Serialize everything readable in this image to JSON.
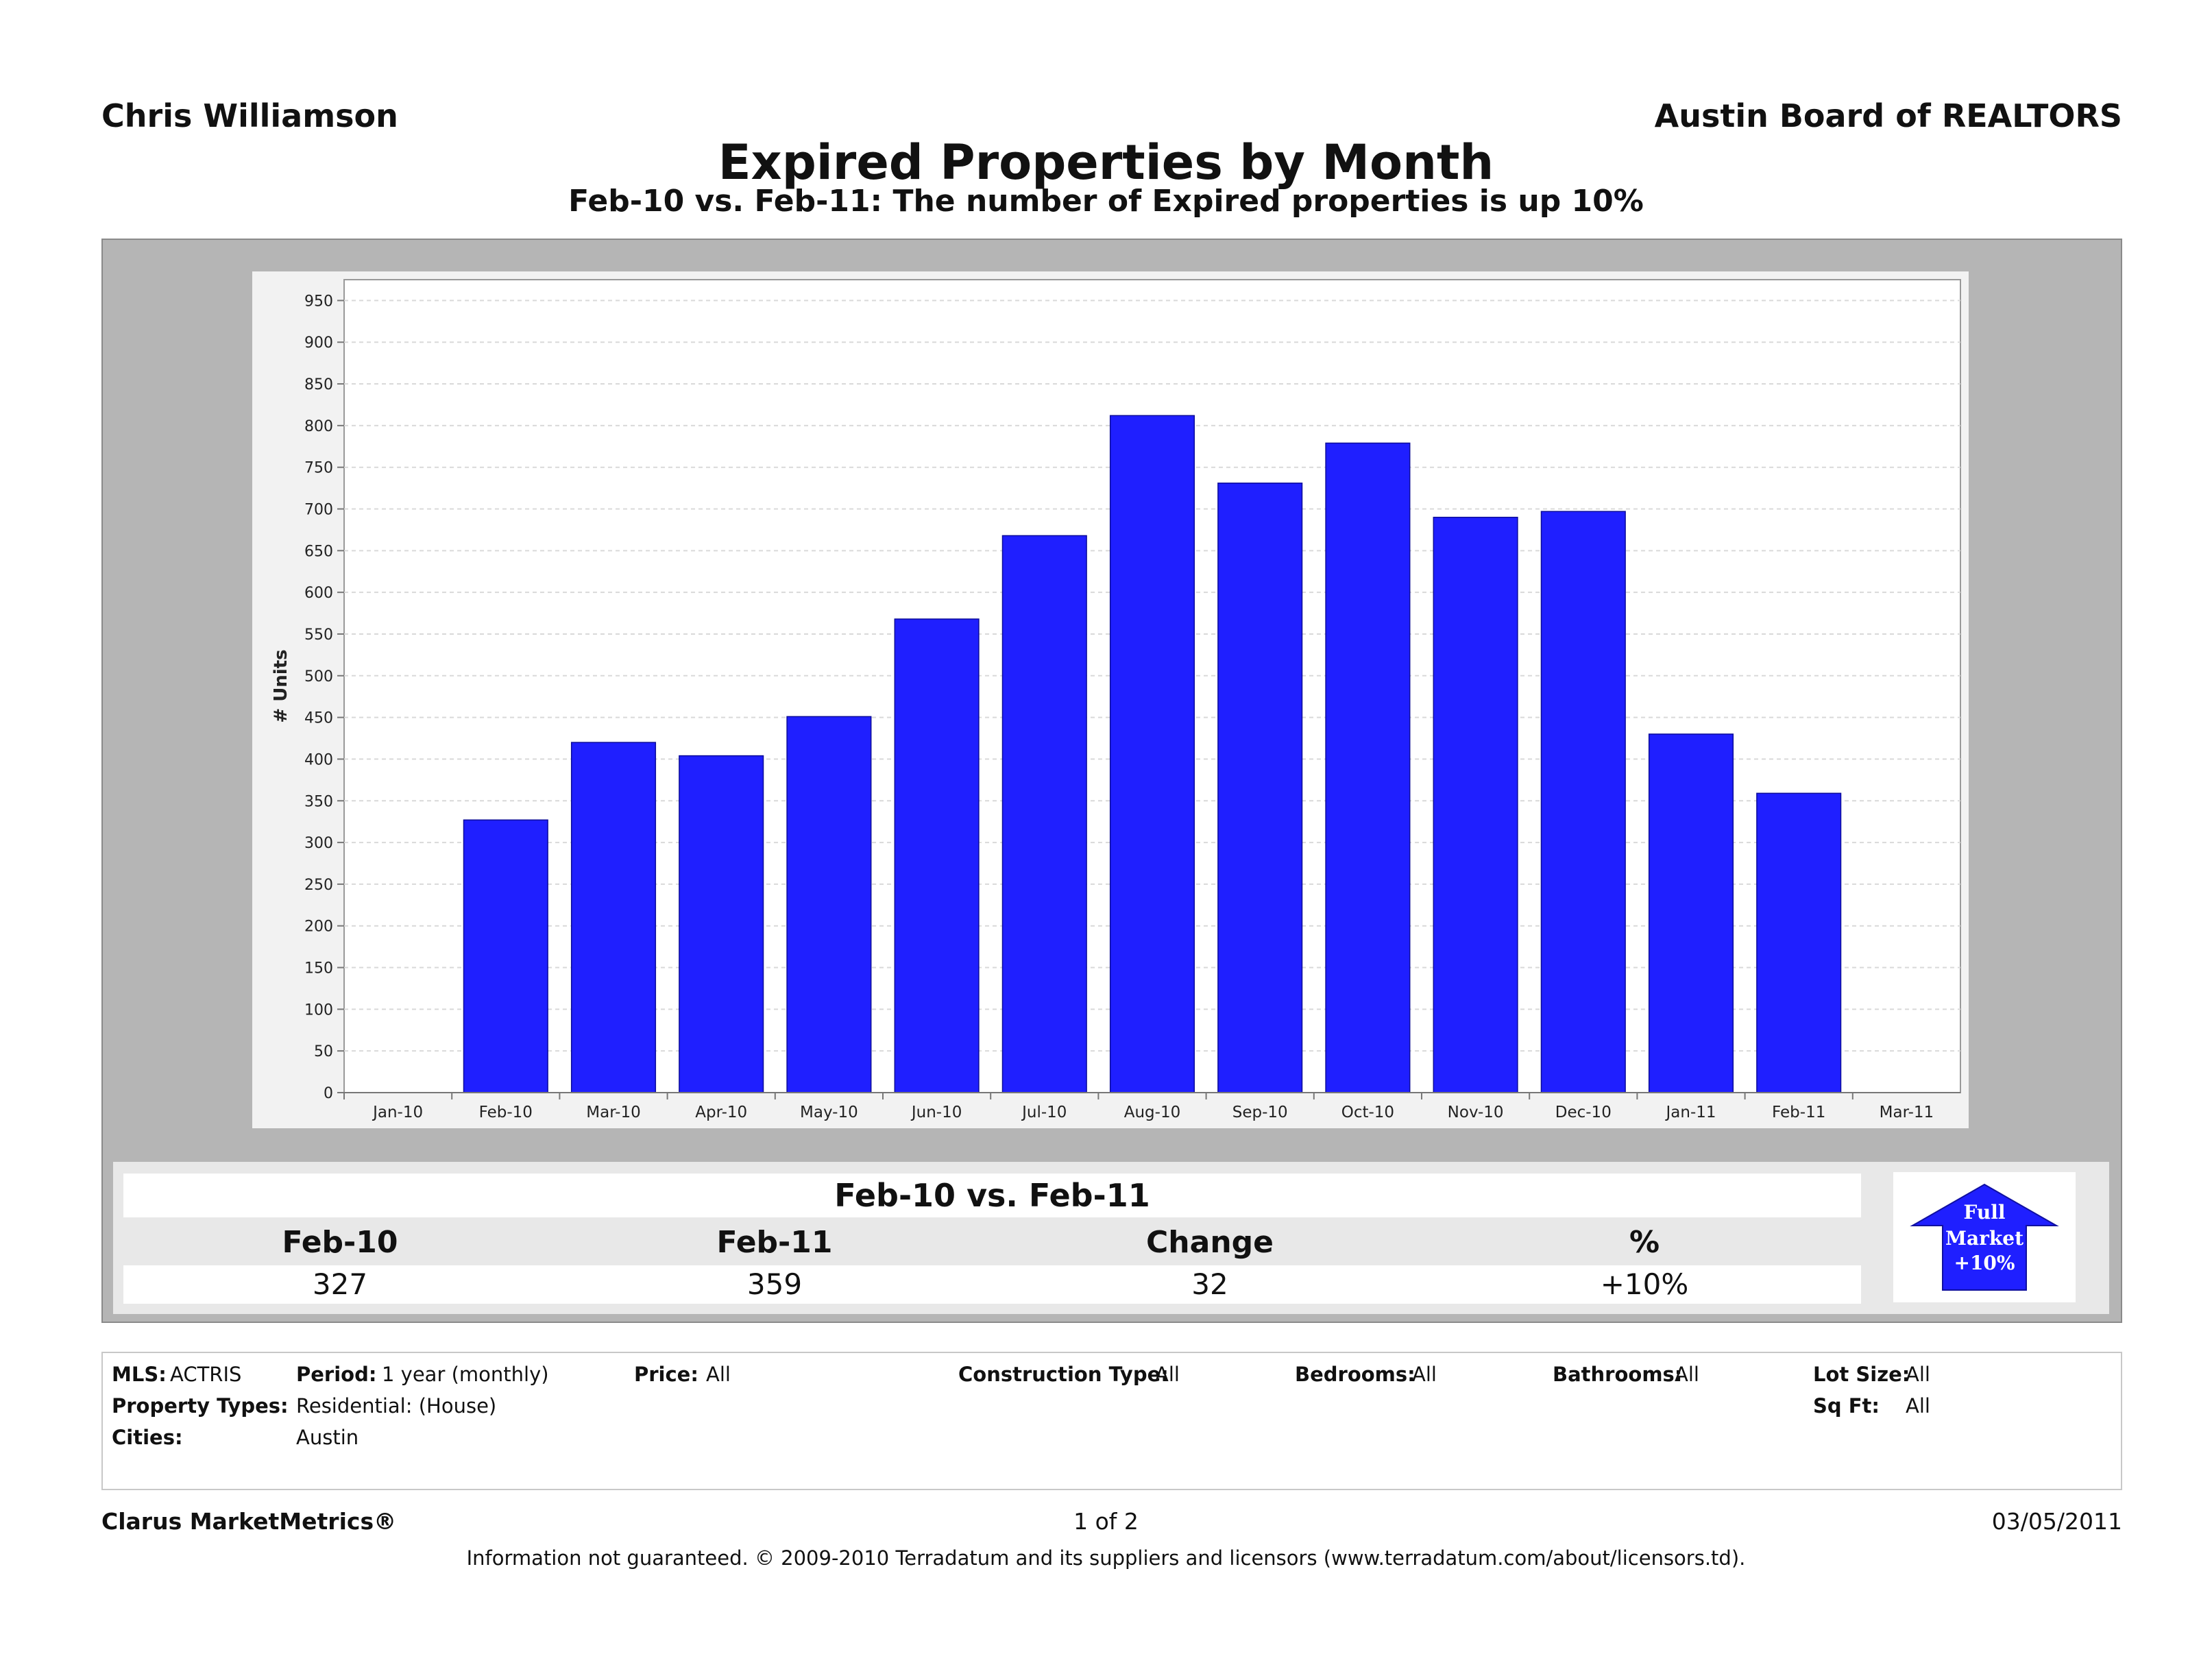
{
  "header": {
    "agent": "Chris Williamson",
    "board": "Austin Board of REALTORS",
    "title": "Expired Properties by Month",
    "subtitle": "Feb-10 vs. Feb-11: The number of Expired properties is up 10%"
  },
  "chart_data": {
    "type": "bar",
    "ylabel": "# Units",
    "xlabel": "",
    "ylim": [
      0,
      975
    ],
    "yticks": [
      0,
      50,
      100,
      150,
      200,
      250,
      300,
      350,
      400,
      450,
      500,
      550,
      600,
      650,
      700,
      750,
      800,
      850,
      900,
      950
    ],
    "axis_ticks": [
      "Jan-10",
      "Feb-10",
      "Mar-10",
      "Apr-10",
      "May-10",
      "Jun-10",
      "Jul-10",
      "Aug-10",
      "Sep-10",
      "Oct-10",
      "Nov-10",
      "Dec-10",
      "Jan-11",
      "Feb-11",
      "Mar-11"
    ],
    "categories": [
      "Feb-10",
      "Mar-10",
      "Apr-10",
      "May-10",
      "Jun-10",
      "Jul-10",
      "Aug-10",
      "Sep-10",
      "Oct-10",
      "Nov-10",
      "Dec-10",
      "Jan-11",
      "Feb-11"
    ],
    "values": [
      327,
      420,
      404,
      451,
      568,
      668,
      812,
      731,
      779,
      690,
      697,
      430,
      359
    ],
    "bar_color": "#1f1fff",
    "grid": true
  },
  "summary": {
    "heading": "Feb-10 vs. Feb-11",
    "columns": [
      "Feb-10",
      "Feb-11",
      "Change",
      "%"
    ],
    "values": [
      "327",
      "359",
      "32",
      "+10%"
    ]
  },
  "badge": {
    "line1": "Full",
    "line2": "Market",
    "line3": "+10%",
    "color": "#1f1fff",
    "icon": "arrow-up-icon"
  },
  "filters": {
    "mls_label": "MLS:",
    "mls_value": "ACTRIS",
    "period_label": "Period:",
    "period_value": "1 year (monthly)",
    "price_label": "Price:",
    "price_value": "All",
    "construction_label": "Construction Type:",
    "construction_value": "All",
    "bedrooms_label": "Bedrooms:",
    "bedrooms_value": "All",
    "bathrooms_label": "Bathrooms:",
    "bathrooms_value": "All",
    "lotsize_label": "Lot Size:",
    "lotsize_value": "All",
    "proptypes_label": "Property Types:",
    "proptypes_value": "Residential: (House)",
    "sqft_label": "Sq Ft:",
    "sqft_value": "All",
    "cities_label": "Cities:",
    "cities_value": "Austin"
  },
  "footer": {
    "brand": "Clarus MarketMetrics®",
    "page": "1 of 2",
    "date": "03/05/2011",
    "disclaimer": "Information not guaranteed.  © 2009-2010 Terradatum and its suppliers and licensors (www.terradatum.com/about/licensors.td)."
  }
}
